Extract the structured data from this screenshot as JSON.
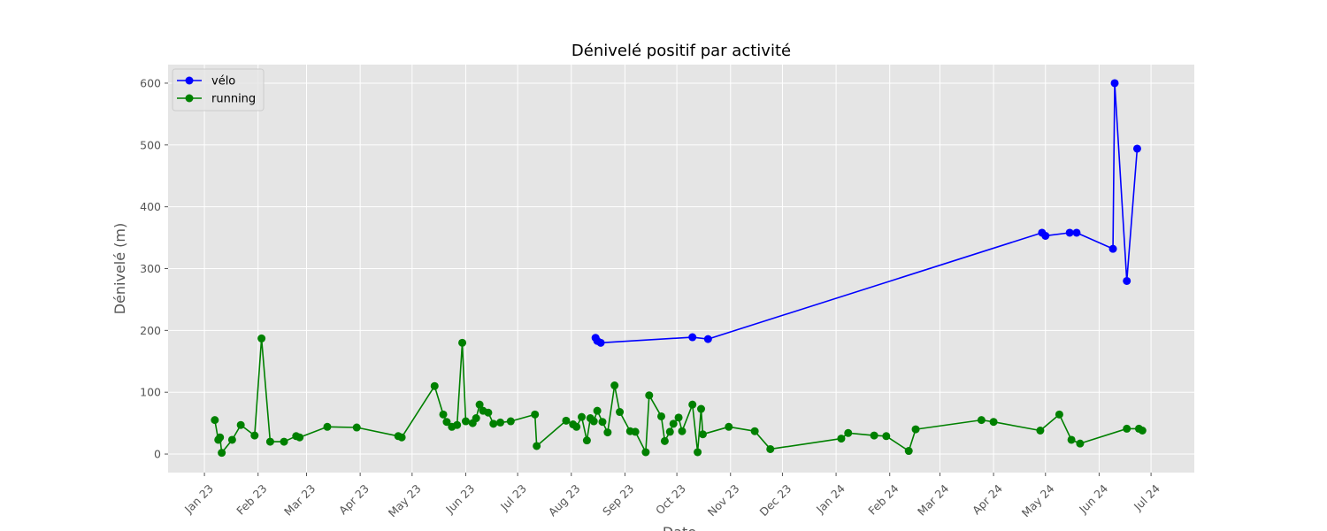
{
  "chart_data": {
    "type": "line",
    "title": "Dénivelé positif par activité",
    "xlabel": "Date",
    "ylabel": "Dénivelé (m)",
    "x_range": [
      "2022-12-11",
      "2024-07-26"
    ],
    "ylim": [
      -30,
      630
    ],
    "grid": true,
    "legend_position": "top-left",
    "x_ticks": [
      {
        "date": "2023-01-01",
        "label": "Jan 23"
      },
      {
        "date": "2023-02-01",
        "label": "Feb 23"
      },
      {
        "date": "2023-03-01",
        "label": "Mar 23"
      },
      {
        "date": "2023-04-01",
        "label": "Apr 23"
      },
      {
        "date": "2023-05-01",
        "label": "May 23"
      },
      {
        "date": "2023-06-01",
        "label": "Jun 23"
      },
      {
        "date": "2023-07-01",
        "label": "Jul 23"
      },
      {
        "date": "2023-08-01",
        "label": "Aug 23"
      },
      {
        "date": "2023-09-01",
        "label": "Sep 23"
      },
      {
        "date": "2023-10-01",
        "label": "Oct 23"
      },
      {
        "date": "2023-11-01",
        "label": "Nov 23"
      },
      {
        "date": "2023-12-01",
        "label": "Dec 23"
      },
      {
        "date": "2024-01-01",
        "label": "Jan 24"
      },
      {
        "date": "2024-02-01",
        "label": "Feb 24"
      },
      {
        "date": "2024-03-01",
        "label": "Mar 24"
      },
      {
        "date": "2024-04-01",
        "label": "Apr 24"
      },
      {
        "date": "2024-05-01",
        "label": "May 24"
      },
      {
        "date": "2024-06-01",
        "label": "Jun 24"
      },
      {
        "date": "2024-07-01",
        "label": "Jul 24"
      }
    ],
    "y_ticks": [
      0,
      100,
      200,
      300,
      400,
      500,
      600
    ],
    "series": [
      {
        "name": "vélo",
        "color": "#0000ff",
        "points": [
          [
            "2023-08-15",
            188
          ],
          [
            "2023-08-16",
            183
          ],
          [
            "2023-08-18",
            180
          ],
          [
            "2023-10-10",
            189
          ],
          [
            "2023-10-19",
            186
          ],
          [
            "2024-04-29",
            358
          ],
          [
            "2024-05-01",
            353
          ],
          [
            "2024-05-15",
            358
          ],
          [
            "2024-05-19",
            358
          ],
          [
            "2024-06-09",
            332
          ],
          [
            "2024-06-10",
            600
          ],
          [
            "2024-06-17",
            280
          ],
          [
            "2024-06-23",
            494
          ]
        ]
      },
      {
        "name": "running",
        "color": "#008000",
        "points": [
          [
            "2023-01-07",
            55
          ],
          [
            "2023-01-09",
            23
          ],
          [
            "2023-01-10",
            27
          ],
          [
            "2023-01-11",
            2
          ],
          [
            "2023-01-17",
            23
          ],
          [
            "2023-01-22",
            47
          ],
          [
            "2023-01-30",
            30
          ],
          [
            "2023-02-03",
            187
          ],
          [
            "2023-02-08",
            20
          ],
          [
            "2023-02-16",
            20
          ],
          [
            "2023-02-23",
            29
          ],
          [
            "2023-02-25",
            27
          ],
          [
            "2023-03-13",
            44
          ],
          [
            "2023-03-30",
            43
          ],
          [
            "2023-04-23",
            29
          ],
          [
            "2023-04-25",
            27
          ],
          [
            "2023-05-14",
            110
          ],
          [
            "2023-05-19",
            64
          ],
          [
            "2023-05-21",
            52
          ],
          [
            "2023-05-24",
            44
          ],
          [
            "2023-05-27",
            47
          ],
          [
            "2023-05-30",
            180
          ],
          [
            "2023-06-01",
            53
          ],
          [
            "2023-06-05",
            50
          ],
          [
            "2023-06-07",
            58
          ],
          [
            "2023-06-09",
            80
          ],
          [
            "2023-06-11",
            70
          ],
          [
            "2023-06-14",
            67
          ],
          [
            "2023-06-17",
            49
          ],
          [
            "2023-06-21",
            51
          ],
          [
            "2023-06-27",
            53
          ],
          [
            "2023-07-11",
            64
          ],
          [
            "2023-07-12",
            13
          ],
          [
            "2023-07-29",
            54
          ],
          [
            "2023-08-02",
            48
          ],
          [
            "2023-08-04",
            44
          ],
          [
            "2023-08-07",
            60
          ],
          [
            "2023-08-10",
            22
          ],
          [
            "2023-08-12",
            58
          ],
          [
            "2023-08-14",
            53
          ],
          [
            "2023-08-16",
            70
          ],
          [
            "2023-08-19",
            52
          ],
          [
            "2023-08-22",
            35
          ],
          [
            "2023-08-26",
            111
          ],
          [
            "2023-08-29",
            68
          ],
          [
            "2023-09-04",
            37
          ],
          [
            "2023-09-07",
            36
          ],
          [
            "2023-09-13",
            3
          ],
          [
            "2023-09-15",
            95
          ],
          [
            "2023-09-22",
            61
          ],
          [
            "2023-09-24",
            21
          ],
          [
            "2023-09-27",
            36
          ],
          [
            "2023-09-29",
            49
          ],
          [
            "2023-10-02",
            59
          ],
          [
            "2023-10-04",
            37
          ],
          [
            "2023-10-10",
            80
          ],
          [
            "2023-10-13",
            3
          ],
          [
            "2023-10-15",
            73
          ],
          [
            "2023-10-16",
            32
          ],
          [
            "2023-10-31",
            44
          ],
          [
            "2023-11-15",
            37
          ],
          [
            "2023-11-24",
            8
          ],
          [
            "2024-01-04",
            25
          ],
          [
            "2024-01-08",
            34
          ],
          [
            "2024-01-23",
            30
          ],
          [
            "2024-01-30",
            29
          ],
          [
            "2024-02-12",
            5
          ],
          [
            "2024-02-16",
            40
          ],
          [
            "2024-03-25",
            55
          ],
          [
            "2024-04-01",
            52
          ],
          [
            "2024-04-28",
            38
          ],
          [
            "2024-05-09",
            64
          ],
          [
            "2024-05-16",
            23
          ],
          [
            "2024-05-21",
            17
          ],
          [
            "2024-06-17",
            41
          ],
          [
            "2024-06-24",
            41
          ],
          [
            "2024-06-26",
            38
          ]
        ]
      }
    ]
  }
}
